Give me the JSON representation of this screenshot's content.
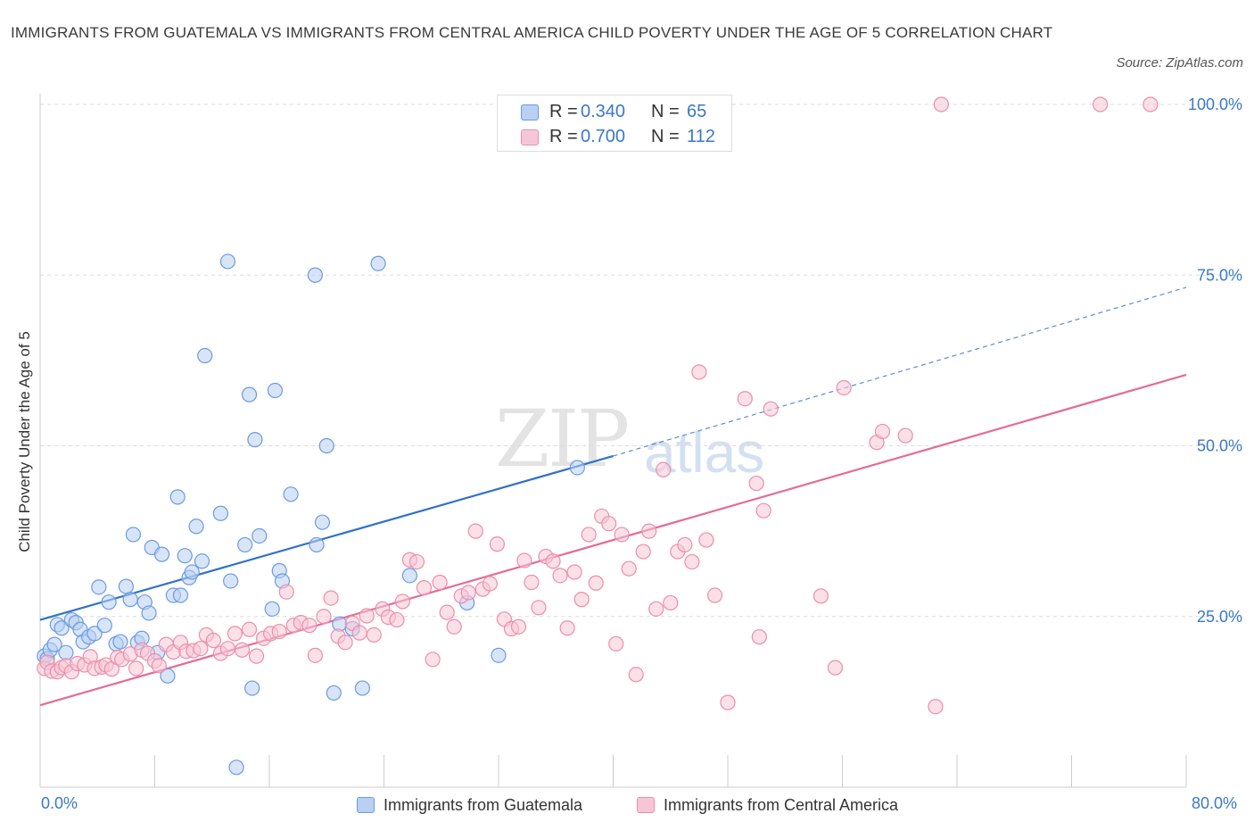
{
  "title": "IMMIGRANTS FROM GUATEMALA VS IMMIGRANTS FROM CENTRAL AMERICA CHILD POVERTY UNDER THE AGE OF 5 CORRELATION CHART",
  "source": "Source: ZipAtlas.com",
  "watermark": {
    "zip": "ZIP",
    "atlas": "atlas"
  },
  "colors": {
    "series_a_fill": "#b8d0f2",
    "series_a_stroke": "#6b9be0",
    "series_a_line": "#2f72c8",
    "series_b_fill": "#f7c6d6",
    "series_b_stroke": "#ec8eab",
    "series_b_line": "#e46b96",
    "accent_text": "#3a78c8",
    "grid": "#dcdcdc"
  },
  "legend": {
    "rows": [
      {
        "r_label": "R =",
        "r_value": "0.340",
        "n_label": "N =",
        "n_value": "65"
      },
      {
        "r_label": "R =",
        "r_value": "0.700",
        "n_label": "N =",
        "n_value": "112"
      }
    ]
  },
  "chart_data": {
    "type": "scatter",
    "xlabel": "",
    "ylabel": "Child Poverty Under the Age of 5",
    "xlim": [
      0,
      80
    ],
    "ylim": [
      0,
      100
    ],
    "x_tick_labels": [
      "0.0%",
      "80.0%"
    ],
    "y_tick_labels": [
      "25.0%",
      "50.0%",
      "75.0%",
      "100.0%"
    ],
    "y_ticks": [
      25,
      50,
      75,
      100
    ],
    "grid": "horizontal dashed",
    "legend_position": "top-center",
    "series": [
      {
        "name": "Immigrants from Guatemala",
        "trendline": {
          "x": [
            0,
            40
          ],
          "y": [
            24.5,
            48.5
          ],
          "dashed_extension_to": [
            80,
            73.2
          ]
        },
        "points": [
          [
            0.3,
            19.2
          ],
          [
            0.5,
            18.8
          ],
          [
            0.7,
            20.1
          ],
          [
            1.0,
            20.9
          ],
          [
            1.2,
            23.8
          ],
          [
            1.5,
            23.3
          ],
          [
            1.8,
            19.7
          ],
          [
            2.2,
            24.5
          ],
          [
            2.5,
            24.1
          ],
          [
            2.8,
            23.1
          ],
          [
            3.0,
            21.3
          ],
          [
            3.4,
            22.0
          ],
          [
            3.8,
            22.5
          ],
          [
            4.1,
            29.3
          ],
          [
            4.5,
            23.7
          ],
          [
            4.8,
            27.1
          ],
          [
            5.3,
            21.0
          ],
          [
            5.6,
            21.3
          ],
          [
            6.0,
            29.4
          ],
          [
            6.3,
            27.5
          ],
          [
            6.8,
            21.2
          ],
          [
            6.5,
            37.0
          ],
          [
            7.1,
            21.8
          ],
          [
            7.3,
            27.1
          ],
          [
            7.6,
            25.5
          ],
          [
            7.8,
            35.1
          ],
          [
            8.2,
            19.7
          ],
          [
            8.5,
            34.1
          ],
          [
            8.9,
            16.3
          ],
          [
            9.3,
            28.1
          ],
          [
            9.6,
            42.5
          ],
          [
            9.8,
            28.1
          ],
          [
            10.1,
            33.9
          ],
          [
            10.4,
            30.7
          ],
          [
            10.6,
            31.5
          ],
          [
            10.9,
            38.2
          ],
          [
            11.3,
            33.1
          ],
          [
            11.5,
            63.2
          ],
          [
            12.6,
            40.1
          ],
          [
            13.1,
            77.0
          ],
          [
            13.3,
            30.2
          ],
          [
            13.7,
            2.9
          ],
          [
            14.3,
            35.5
          ],
          [
            14.6,
            57.5
          ],
          [
            14.8,
            14.5
          ],
          [
            15.0,
            50.9
          ],
          [
            15.3,
            36.8
          ],
          [
            16.2,
            26.1
          ],
          [
            16.4,
            58.1
          ],
          [
            16.7,
            31.7
          ],
          [
            16.9,
            30.2
          ],
          [
            17.5,
            42.9
          ],
          [
            19.2,
            75.0
          ],
          [
            19.3,
            35.5
          ],
          [
            19.7,
            38.8
          ],
          [
            20.0,
            50.0
          ],
          [
            20.5,
            13.8
          ],
          [
            20.9,
            23.9
          ],
          [
            21.8,
            23.2
          ],
          [
            22.5,
            14.5
          ],
          [
            23.6,
            76.7
          ],
          [
            25.8,
            31.0
          ],
          [
            29.8,
            27.0
          ],
          [
            32.0,
            19.3
          ],
          [
            37.5,
            46.8
          ]
        ]
      },
      {
        "name": "Immigrants from Central America",
        "trendline": {
          "x": [
            0,
            80
          ],
          "y": [
            12.0,
            60.4
          ]
        },
        "points": [
          [
            0.3,
            17.4
          ],
          [
            0.5,
            18.3
          ],
          [
            0.8,
            17.0
          ],
          [
            1.2,
            16.9
          ],
          [
            1.5,
            17.5
          ],
          [
            1.8,
            17.8
          ],
          [
            2.2,
            16.9
          ],
          [
            2.6,
            18.1
          ],
          [
            3.1,
            17.9
          ],
          [
            3.5,
            19.1
          ],
          [
            3.8,
            17.4
          ],
          [
            4.3,
            17.6
          ],
          [
            4.6,
            17.9
          ],
          [
            5.0,
            17.3
          ],
          [
            5.4,
            19.0
          ],
          [
            5.7,
            18.7
          ],
          [
            6.3,
            19.5
          ],
          [
            6.7,
            17.4
          ],
          [
            7.1,
            20.1
          ],
          [
            7.5,
            19.6
          ],
          [
            8.0,
            18.5
          ],
          [
            8.3,
            17.8
          ],
          [
            8.8,
            20.9
          ],
          [
            9.3,
            19.8
          ],
          [
            9.8,
            21.2
          ],
          [
            10.2,
            19.9
          ],
          [
            10.7,
            20.0
          ],
          [
            11.2,
            20.3
          ],
          [
            11.6,
            22.3
          ],
          [
            12.1,
            21.5
          ],
          [
            12.6,
            19.6
          ],
          [
            13.1,
            20.3
          ],
          [
            13.6,
            22.5
          ],
          [
            14.1,
            20.1
          ],
          [
            14.6,
            23.1
          ],
          [
            15.1,
            19.2
          ],
          [
            15.6,
            21.8
          ],
          [
            16.1,
            22.5
          ],
          [
            16.7,
            22.8
          ],
          [
            17.2,
            28.6
          ],
          [
            17.7,
            23.7
          ],
          [
            18.2,
            24.1
          ],
          [
            18.8,
            23.7
          ],
          [
            19.2,
            19.3
          ],
          [
            19.8,
            25.0
          ],
          [
            20.3,
            27.7
          ],
          [
            20.8,
            22.1
          ],
          [
            21.3,
            21.2
          ],
          [
            21.8,
            24.0
          ],
          [
            22.3,
            22.6
          ],
          [
            22.8,
            25.1
          ],
          [
            23.3,
            22.3
          ],
          [
            23.9,
            26.1
          ],
          [
            24.3,
            24.9
          ],
          [
            24.9,
            24.5
          ],
          [
            25.3,
            27.2
          ],
          [
            25.8,
            33.3
          ],
          [
            26.3,
            33.0
          ],
          [
            26.8,
            29.2
          ],
          [
            27.4,
            18.7
          ],
          [
            27.9,
            30.0
          ],
          [
            28.4,
            25.6
          ],
          [
            28.9,
            23.5
          ],
          [
            29.4,
            28.0
          ],
          [
            29.9,
            28.5
          ],
          [
            30.4,
            37.5
          ],
          [
            30.9,
            29.0
          ],
          [
            31.4,
            29.8
          ],
          [
            31.9,
            35.6
          ],
          [
            32.4,
            24.6
          ],
          [
            32.9,
            23.2
          ],
          [
            33.4,
            23.5
          ],
          [
            33.8,
            33.2
          ],
          [
            34.3,
            30.0
          ],
          [
            34.8,
            26.3
          ],
          [
            35.3,
            33.8
          ],
          [
            35.8,
            33.1
          ],
          [
            36.3,
            31.0
          ],
          [
            36.8,
            23.3
          ],
          [
            37.3,
            31.5
          ],
          [
            37.8,
            27.5
          ],
          [
            38.3,
            37.0
          ],
          [
            38.8,
            29.9
          ],
          [
            39.2,
            39.7
          ],
          [
            39.7,
            38.6
          ],
          [
            40.2,
            21.0
          ],
          [
            40.6,
            37.0
          ],
          [
            41.1,
            32.0
          ],
          [
            41.6,
            16.5
          ],
          [
            42.1,
            34.5
          ],
          [
            42.5,
            37.5
          ],
          [
            43.0,
            26.1
          ],
          [
            43.5,
            46.5
          ],
          [
            44.0,
            27.0
          ],
          [
            44.5,
            34.5
          ],
          [
            45.0,
            35.5
          ],
          [
            45.5,
            33.0
          ],
          [
            46.0,
            60.8
          ],
          [
            46.5,
            36.2
          ],
          [
            47.1,
            28.1
          ],
          [
            48.0,
            12.4
          ],
          [
            49.2,
            56.9
          ],
          [
            50.0,
            44.5
          ],
          [
            50.2,
            22.0
          ],
          [
            50.5,
            40.5
          ],
          [
            51.0,
            55.4
          ],
          [
            54.5,
            28.0
          ],
          [
            55.5,
            17.5
          ],
          [
            56.1,
            58.5
          ],
          [
            58.4,
            50.5
          ],
          [
            58.8,
            52.1
          ],
          [
            60.4,
            51.5
          ],
          [
            62.5,
            11.8
          ],
          [
            62.9,
            100.0
          ],
          [
            74.0,
            100.0
          ],
          [
            77.5,
            100.0
          ]
        ]
      }
    ]
  }
}
